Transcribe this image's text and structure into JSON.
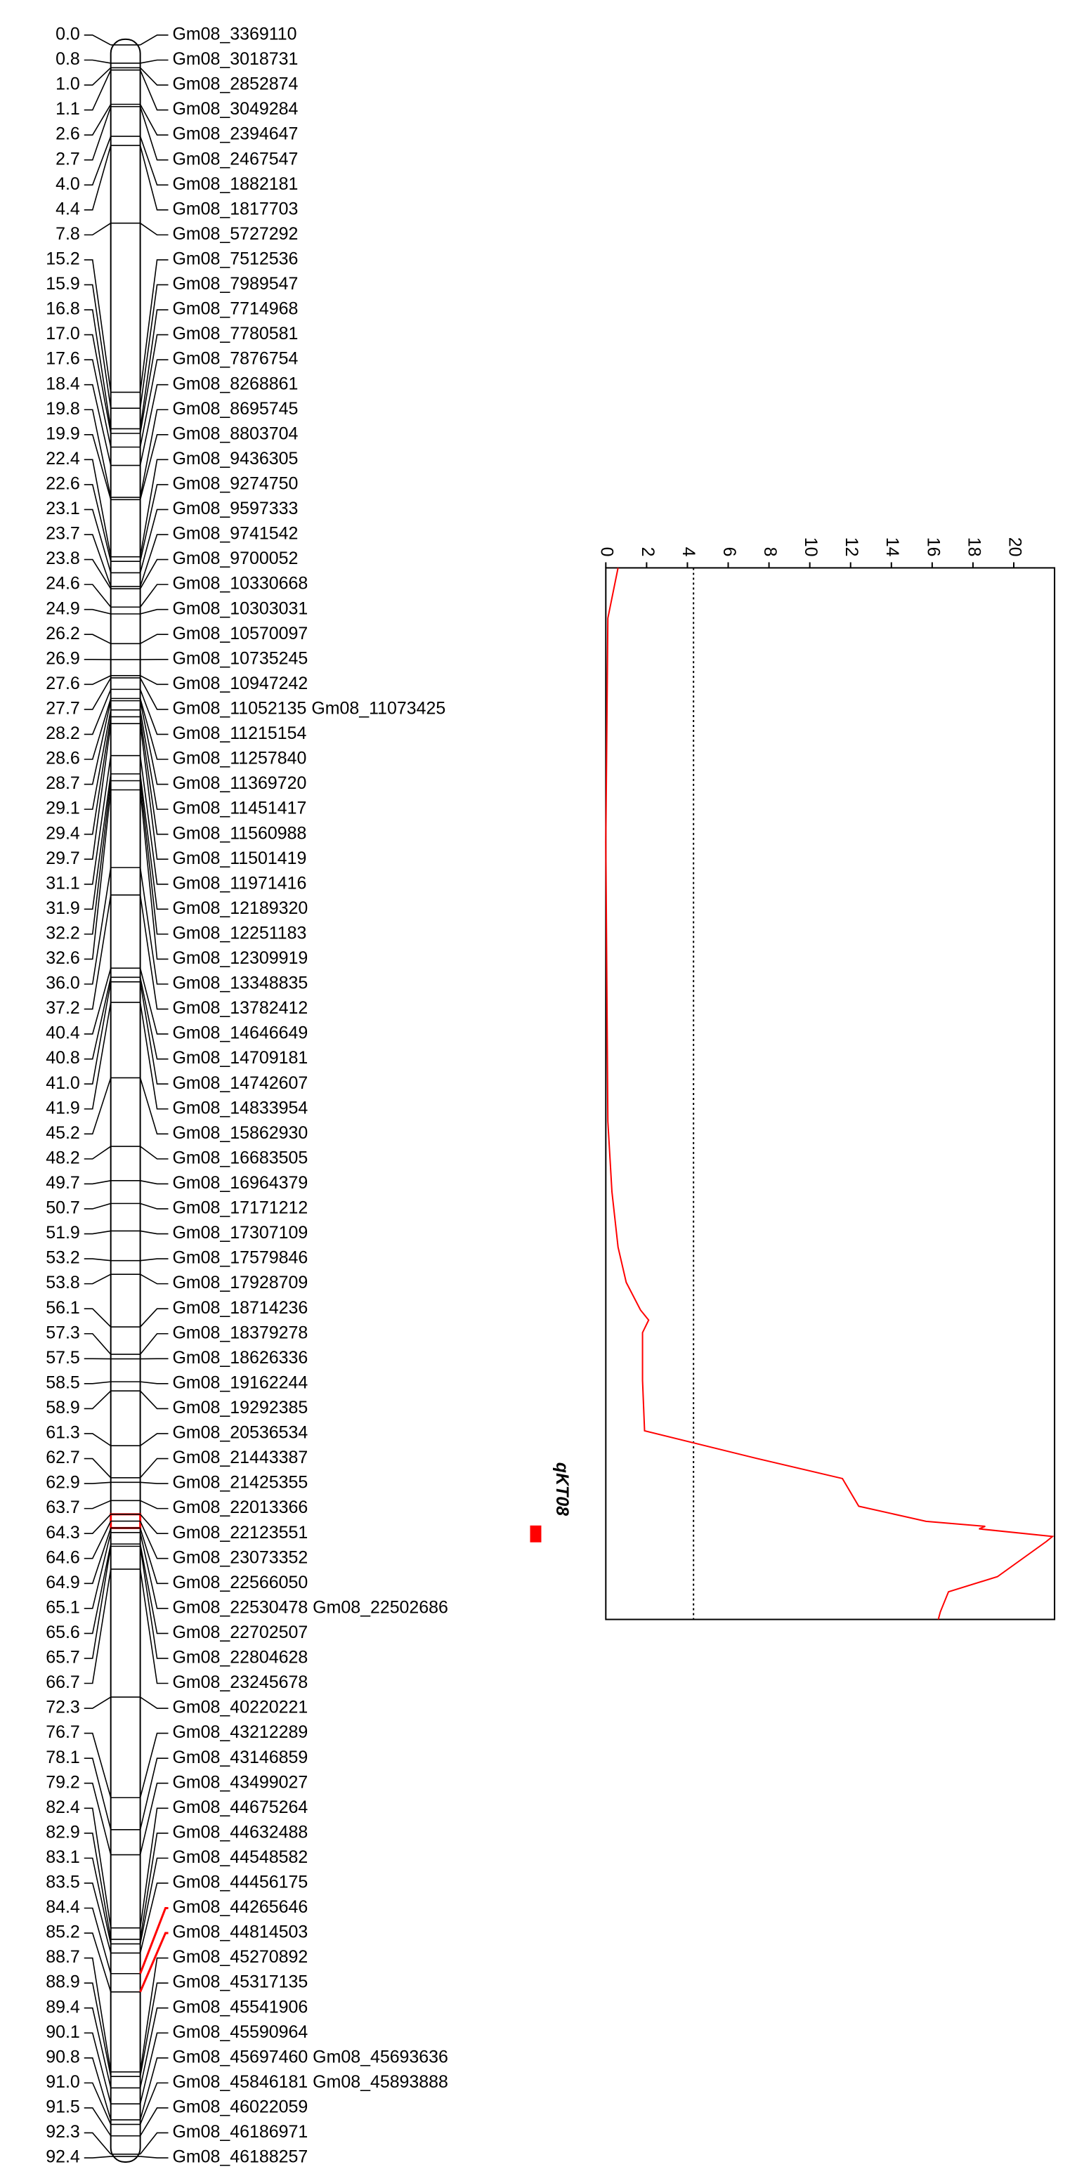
{
  "linkage_map": {
    "positions": [
      "0.0",
      "0.8",
      "1.0",
      "1.1",
      "2.6",
      "2.7",
      "4.0",
      "4.4",
      "7.8",
      "15.2",
      "15.9",
      "16.8",
      "17.0",
      "17.6",
      "18.4",
      "19.8",
      "19.9",
      "22.4",
      "22.6",
      "23.1",
      "23.7",
      "23.8",
      "24.6",
      "24.9",
      "26.2",
      "26.9",
      "27.6",
      "27.7",
      "28.2",
      "28.6",
      "28.7",
      "29.1",
      "29.4",
      "29.7",
      "31.1",
      "31.9",
      "32.2",
      "32.6",
      "36.0",
      "37.2",
      "40.4",
      "40.8",
      "41.0",
      "41.9",
      "45.2",
      "48.2",
      "49.7",
      "50.7",
      "51.9",
      "53.2",
      "53.8",
      "56.1",
      "57.3",
      "57.5",
      "58.5",
      "58.9",
      "61.3",
      "62.7",
      "62.9",
      "63.7",
      "64.3",
      "64.6",
      "64.9",
      "65.1",
      "65.6",
      "65.7",
      "66.7",
      "72.3",
      "76.7",
      "78.1",
      "79.2",
      "82.4",
      "82.9",
      "83.1",
      "83.5",
      "84.4",
      "85.2",
      "88.7",
      "88.9",
      "89.4",
      "90.1",
      "90.8",
      "91.0",
      "91.5",
      "92.3",
      "92.4"
    ],
    "markers": [
      "Gm08_3369110",
      "Gm08_3018731",
      "Gm08_2852874",
      "Gm08_3049284",
      "Gm08_2394647",
      "Gm08_2467547",
      "Gm08_1882181",
      "Gm08_1817703",
      "Gm08_5727292",
      "Gm08_7512536",
      "Gm08_7989547",
      "Gm08_7714968",
      "Gm08_7780581",
      "Gm08_7876754",
      "Gm08_8268861",
      "Gm08_8695745",
      "Gm08_8803704",
      "Gm08_9436305",
      "Gm08_9274750",
      "Gm08_9597333",
      "Gm08_9741542",
      "Gm08_9700052",
      "Gm08_10330668",
      "Gm08_10303031",
      "Gm08_10570097",
      "Gm08_10735245",
      "Gm08_10947242",
      "Gm08_11052135 Gm08_11073425",
      "Gm08_11215154",
      "Gm08_11257840",
      "Gm08_11369720",
      "Gm08_11451417",
      "Gm08_11560988",
      "Gm08_11501419",
      "Gm08_11971416",
      "Gm08_12189320",
      "Gm08_12251183",
      "Gm08_12309919",
      "Gm08_13348835",
      "Gm08_13782412",
      "Gm08_14646649",
      "Gm08_14709181",
      "Gm08_14742607",
      "Gm08_14833954",
      "Gm08_15862930",
      "Gm08_16683505",
      "Gm08_16964379",
      "Gm08_17171212",
      "Gm08_17307109",
      "Gm08_17579846",
      "Gm08_17928709",
      "Gm08_18714236",
      "Gm08_18379278",
      "Gm08_18626336",
      "Gm08_19162244",
      "Gm08_19292385",
      "Gm08_20536534",
      "Gm08_21443387",
      "Gm08_21425355",
      "Gm08_22013366",
      "Gm08_22123551",
      "Gm08_23073352",
      "Gm08_22566050",
      "Gm08_22530478 Gm08_22502686",
      "Gm08_22702507",
      "Gm08_22804628",
      "Gm08_23245678",
      "Gm08_40220221",
      "Gm08_43212289",
      "Gm08_43146859",
      "Gm08_43499027",
      "Gm08_44675264",
      "Gm08_44632488",
      "Gm08_44548582",
      "Gm08_44456175",
      "Gm08_44265646",
      "Gm08_44814503",
      "Gm08_45270892",
      "Gm08_45317135",
      "Gm08_45541906",
      "Gm08_45590964",
      "Gm08_45697460 Gm08_45693636",
      "Gm08_45846181 Gm08_45893888",
      "Gm08_46022059",
      "Gm08_46186971",
      "Gm08_46188257"
    ],
    "highlighted": [
      75,
      76
    ],
    "highlight_color": "#ff0000"
  },
  "qtl": {
    "label": "qKT08",
    "start": 64.3,
    "end": 64.9,
    "color": "#ff0000"
  },
  "chart_data": {
    "type": "line",
    "orientation": "horizontal-value",
    "x": [
      23.8,
      24.6,
      25.8,
      34.7,
      45.8,
      48.6,
      50.8,
      52.2,
      53.3,
      53.7,
      54.2,
      56.1,
      58.1,
      59.2,
      60.0,
      61.1,
      61.7,
      61.9,
      62.0,
      62.3,
      62.5,
      63.9,
      64.5,
      65.3,
      65.6
    ],
    "values": [
      0.6,
      0.4,
      0.1,
      0.0,
      0.1,
      0.3,
      0.6,
      1.0,
      1.7,
      2.1,
      1.8,
      1.8,
      1.9,
      7.4,
      11.6,
      12.4,
      15.7,
      18.6,
      18.3,
      21.9,
      21.6,
      19.2,
      16.8,
      16.4,
      16.3
    ],
    "xlim": [
      23.8,
      65.6
    ],
    "ylim": [
      0,
      22
    ],
    "yticks": [
      0,
      2,
      4,
      6,
      8,
      10,
      12,
      14,
      16,
      18,
      20
    ],
    "threshold": 4.3,
    "color": "#ff0000"
  }
}
